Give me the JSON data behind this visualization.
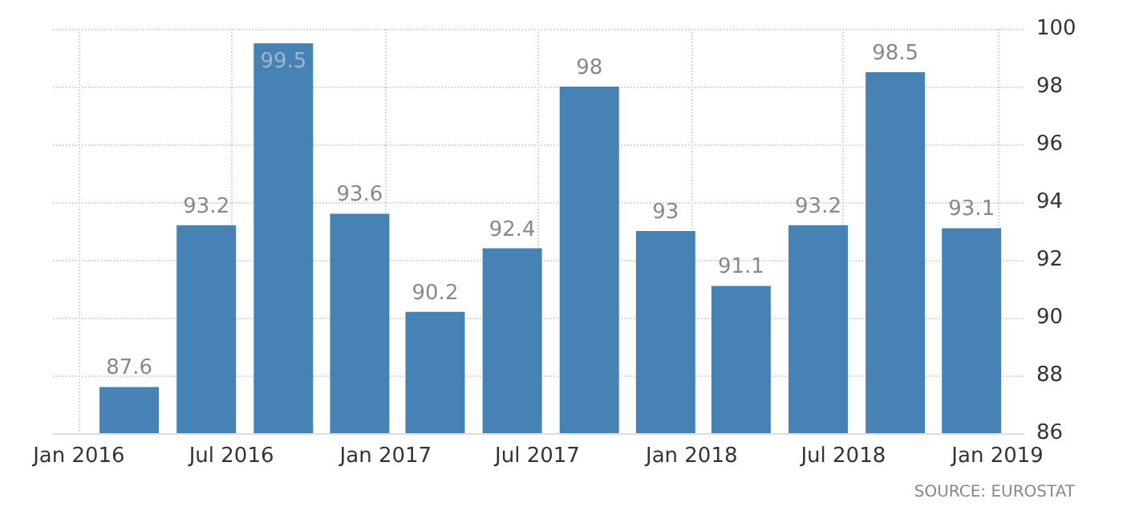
{
  "chart_data": {
    "type": "bar",
    "x": [
      "2016-03",
      "2016-06",
      "2016-09",
      "2016-12",
      "2017-03",
      "2017-06",
      "2017-09",
      "2017-12",
      "2018-03",
      "2018-06",
      "2018-09",
      "2018-12"
    ],
    "values": [
      87.6,
      93.2,
      99.5,
      93.6,
      90.2,
      92.4,
      98,
      93,
      91.1,
      93.2,
      98.5,
      93.1
    ],
    "color": "#4682b4",
    "data_labels": true,
    "xlim": [
      "2015-12",
      "2019-02"
    ],
    "xticks": [
      {
        "value": "2016-01",
        "label": "Jan 2016"
      },
      {
        "value": "2016-07",
        "label": "Jul 2016"
      },
      {
        "value": "2017-01",
        "label": "Jan 2017"
      },
      {
        "value": "2017-07",
        "label": "Jul 2017"
      },
      {
        "value": "2018-01",
        "label": "Jan 2018"
      },
      {
        "value": "2018-07",
        "label": "Jul 2018"
      },
      {
        "value": "2019-01",
        "label": "Jan 2019"
      }
    ],
    "ylim": [
      86,
      100
    ],
    "yticks": [
      86,
      88,
      90,
      92,
      94,
      96,
      98,
      100
    ],
    "grid": true,
    "annotations": [
      "SOURCE: EUROSTAT"
    ]
  }
}
